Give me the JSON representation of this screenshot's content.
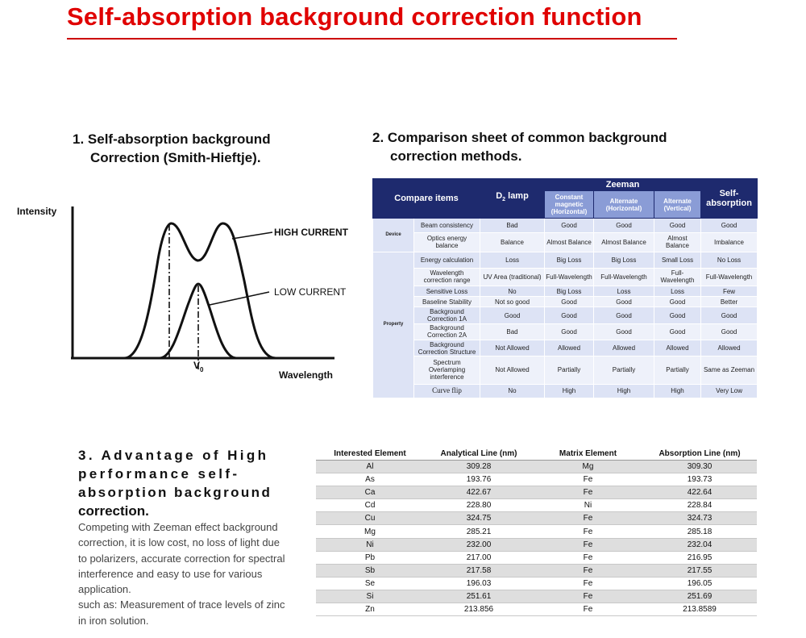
{
  "title": "Self-absorption background correction function",
  "section1": {
    "line1": "1. Self-absorption background",
    "line2": "Correction (Smith-Hieftje)."
  },
  "figure": {
    "ylabel": "Intensity",
    "xlabel": "Wavelength",
    "v0": "V",
    "v0_sub": "0",
    "high_label": "HIGH CURRENT",
    "low_label": "LOW CURRENT"
  },
  "section2": {
    "line1": "2. Comparison sheet of common background",
    "line2": "correction methods."
  },
  "comparison": {
    "compare_items": "Compare items",
    "d2": "D",
    "d2_sub": "2",
    "d2_rest": " lamp",
    "zeeman": "Zeeman",
    "self_absorption": "Self-absorption",
    "sub_headers": [
      "Constant magnetic (Horizontal)",
      "Alternate (Horizontal)",
      "Alternate (Vertical)"
    ],
    "group_device": "Device",
    "group_property": "Property",
    "rows": [
      [
        "Beam consistency",
        "Bad",
        "Good",
        "Good",
        "Good",
        "Good"
      ],
      [
        "Optics energy balance",
        "Balance",
        "Almost Balance",
        "Almost Balance",
        "Almost Balance",
        "Imbalance"
      ],
      [
        "Energy calculation",
        "Loss",
        "Big Loss",
        "Big Loss",
        "Small Loss",
        "No Loss"
      ],
      [
        "Wavelength correction range",
        "UV Area (traditional)",
        "Full-Wavelength",
        "Full-Wavelength",
        "Full-Wavelength",
        "Full-Wavelength"
      ],
      [
        "Sensitive Loss",
        "No",
        "Big Loss",
        "Loss",
        "Loss",
        "Few"
      ],
      [
        "Baseline Stability",
        "Not so good",
        "Good",
        "Good",
        "Good",
        "Better"
      ],
      [
        "Background Correction 1A",
        "Good",
        "Good",
        "Good",
        "Good",
        "Good"
      ],
      [
        "Background Correction 2A",
        "Bad",
        "Good",
        "Good",
        "Good",
        "Good"
      ],
      [
        "Background Correction Structure",
        "Not Allowed",
        "Allowed",
        "Allowed",
        "Allowed",
        "Allowed"
      ],
      [
        "Spectrum Overlamping interference",
        "Not Allowed",
        "Partially",
        "Partially",
        "Partially",
        "Same as Zeeman"
      ],
      [
        "Curve flip",
        "No",
        "High",
        "High",
        "High",
        "Very Low"
      ]
    ]
  },
  "section3": {
    "head1": "3. Advantage of High",
    "head2": "performance self-",
    "head3": "absorption background",
    "head4": "correction.",
    "body1": "Competing with Zeeman effect background correction, it is low cost, no loss of light due to polarizers, accurate correction for spectral interference and easy to use for various application.",
    "body2": "such as: Measurement of trace levels of zinc in iron solution."
  },
  "elements": {
    "headers": [
      "Interested Element",
      "Analytical Line (nm)",
      "Matrix Element",
      "Absorption Line (nm)"
    ],
    "rows": [
      [
        "Al",
        "309.28",
        "Mg",
        "309.30"
      ],
      [
        "As",
        "193.76",
        "Fe",
        "193.73"
      ],
      [
        "Ca",
        "422.67",
        "Fe",
        "422.64"
      ],
      [
        "Cd",
        "228.80",
        "Ni",
        "228.84"
      ],
      [
        "Cu",
        "324.75",
        "Fe",
        "324.73"
      ],
      [
        "Mg",
        "285.21",
        "Fe",
        "285.18"
      ],
      [
        "Ni",
        "232.00",
        "Fe",
        "232.04"
      ],
      [
        "Pb",
        "217.00",
        "Fe",
        "216.95"
      ],
      [
        "Sb",
        "217.58",
        "Fe",
        "217.55"
      ],
      [
        "Se",
        "196.03",
        "Fe",
        "196.05"
      ],
      [
        "Si",
        "251.61",
        "Fe",
        "251.69"
      ],
      [
        "Zn",
        "213.856",
        "Fe",
        "213.8589"
      ]
    ]
  }
}
